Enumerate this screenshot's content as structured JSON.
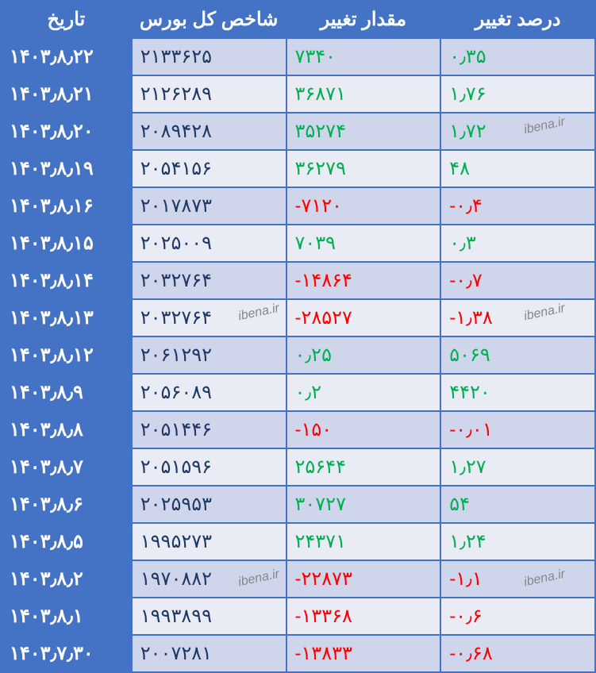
{
  "table": {
    "headers": [
      "تاريخ",
      "شاخص کل بورس",
      "مقدار تغییر",
      "درصد تغییر"
    ],
    "col_widths": [
      "22%",
      "26%",
      "26%",
      "26%"
    ],
    "header_bg": "#4472c4",
    "header_fg": "#ffffff",
    "row_even_bg": "#cfd5ea",
    "row_odd_bg": "#e9ebf5",
    "date_col_bg": "#4472c4",
    "date_col_fg": "#ffffff",
    "border_color": "#4472c4",
    "pos_color": "#00b050",
    "neg_color": "#ff0000",
    "neutral_color": "#1f3864",
    "font_size": 24,
    "rows": [
      {
        "date": "۱۴۰۳٫۸٫۲۲",
        "index": "۲۱۳۳۶۲۵",
        "change": "۷۳۴۰",
        "change_sign": "pos",
        "pct": "۰٫۳۵",
        "pct_sign": "pos"
      },
      {
        "date": "۱۴۰۳٫۸٫۲۱",
        "index": "۲۱۲۶۲۸۹",
        "change": "۳۶۸۷۱",
        "change_sign": "pos",
        "pct": "۱٫۷۶",
        "pct_sign": "pos"
      },
      {
        "date": "۱۴۰۳٫۸٫۲۰",
        "index": "۲۰۸۹۴۲۸",
        "change": "۳۵۲۷۴",
        "change_sign": "pos",
        "pct": "۱٫۷۲",
        "pct_sign": "pos"
      },
      {
        "date": "۱۴۰۳٫۸٫۱۹",
        "index": "۲۰۵۴۱۵۶",
        "change": "۳۶۲۷۹",
        "change_sign": "pos",
        "pct": "۴۸",
        "pct_sign": "pos"
      },
      {
        "date": "۱۴۰۳٫۸٫۱۶",
        "index": "۲۰۱۷۸۷۳",
        "change": "-۷۱۲۰",
        "change_sign": "neg",
        "pct": "-۰٫۴",
        "pct_sign": "neg"
      },
      {
        "date": "۱۴۰۳٫۸٫۱۵",
        "index": "۲۰۲۵۰۰۹",
        "change": "۷۰۳۹",
        "change_sign": "pos",
        "pct": "۰٫۳",
        "pct_sign": "pos"
      },
      {
        "date": "۱۴۰۳٫۸٫۱۴",
        "index": "۲۰۳۲۷۶۴",
        "change": "-۱۴۸۶۴",
        "change_sign": "neg",
        "pct": "-۰٫۷",
        "pct_sign": "neg"
      },
      {
        "date": "۱۴۰۳٫۸٫۱۳",
        "index": "۲۰۳۲۷۶۴",
        "change": "-۲۸۵۲۷",
        "change_sign": "neg",
        "pct": "-۱٫۳۸",
        "pct_sign": "neg"
      },
      {
        "date": "۱۴۰۳٫۸٫۱۲",
        "index": "۲۰۶۱۲۹۲",
        "change": "۰٫۲۵",
        "change_sign": "pos",
        "pct": "۵۰۶۹",
        "pct_sign": "pos"
      },
      {
        "date": "۱۴۰۳٫۸٫۹",
        "index": "۲۰۵۶۰۸۹",
        "change": "۰٫۲",
        "change_sign": "pos",
        "pct": "۴۴۲۰",
        "pct_sign": "pos"
      },
      {
        "date": "۱۴۰۳٫۸٫۸",
        "index": "۲۰۵۱۴۴۶",
        "change": "-۱۵۰",
        "change_sign": "neg",
        "pct": "-۰٫۰۱",
        "pct_sign": "neg"
      },
      {
        "date": "۱۴۰۳٫۸٫۷",
        "index": "۲۰۵۱۵۹۶",
        "change": "۲۵۶۴۴",
        "change_sign": "pos",
        "pct": "۱٫۲۷",
        "pct_sign": "pos"
      },
      {
        "date": "۱۴۰۳٫۸٫۶",
        "index": "۲۰۲۵۹۵۳",
        "change": "۳۰۷۲۷",
        "change_sign": "pos",
        "pct": "۵۴",
        "pct_sign": "pos"
      },
      {
        "date": "۱۴۰۳٫۸٫۵",
        "index": "۱۹۹۵۲۷۳",
        "change": "۲۴۳۷۱",
        "change_sign": "pos",
        "pct": "۱٫۲۴",
        "pct_sign": "pos"
      },
      {
        "date": "۱۴۰۳٫۸٫۲",
        "index": "۱۹۷۰۸۸۲",
        "change": "-۲۲۸۷۳",
        "change_sign": "neg",
        "pct": "-۱٫۱",
        "pct_sign": "neg"
      },
      {
        "date": "۱۴۰۳٫۸٫۱",
        "index": "۱۹۹۳۸۹۹",
        "change": "-۱۳۳۶۸",
        "change_sign": "neg",
        "pct": "-۰٫۶",
        "pct_sign": "neg"
      },
      {
        "date": "۱۴۰۳٫۷٫۳۰",
        "index": "۲۰۰۷۲۸۱",
        "change": "-۱۳۸۳۳",
        "change_sign": "neg",
        "pct": "-۰٫۶۸",
        "pct_sign": "neg"
      }
    ]
  },
  "watermark": "ibena.ir"
}
